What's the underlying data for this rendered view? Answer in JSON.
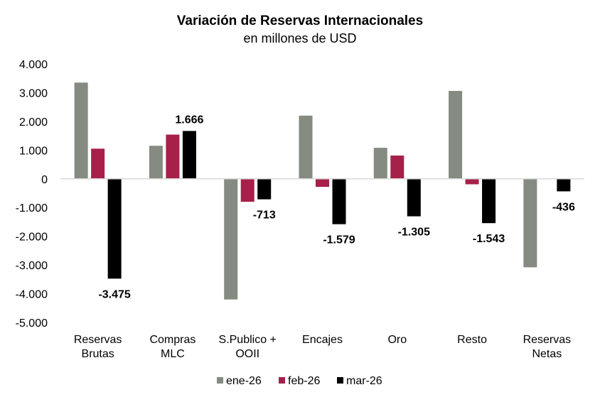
{
  "chart_data": {
    "type": "bar",
    "title": "Variación de Reservas Internacionales",
    "subtitle": "en millones de USD",
    "xlabel": "",
    "ylabel": "",
    "ylim": [
      -5000,
      4000
    ],
    "yticks": [
      4000,
      3000,
      2000,
      1000,
      0,
      -1000,
      -2000,
      -3000,
      -4000,
      -5000
    ],
    "ytick_labels": [
      "4.000",
      "3.000",
      "2.000",
      "1.000",
      "0",
      "-1.000",
      "-2.000",
      "-3.000",
      "-4.000",
      "-5.000"
    ],
    "grid": false,
    "legend_position": "bottom-center",
    "categories": [
      [
        "Reservas",
        "Brutas"
      ],
      [
        "Compras",
        "MLC"
      ],
      [
        "S.Publico +",
        "OOII"
      ],
      [
        "Encajes"
      ],
      [
        "Oro"
      ],
      [
        "Resto"
      ],
      [
        "Reservas",
        "Netas"
      ]
    ],
    "series": [
      {
        "name": "ene-26",
        "color": "#858B80",
        "values": [
          3350,
          1150,
          -4200,
          2200,
          1080,
          3060,
          -3080
        ]
      },
      {
        "name": "feb-26",
        "color": "#A6204A",
        "values": [
          1050,
          1540,
          -800,
          -280,
          810,
          -190,
          null
        ]
      },
      {
        "name": "mar-26",
        "color": "#000000",
        "values": [
          -3475,
          1666,
          -713,
          -1579,
          -1305,
          -1543,
          -436
        ],
        "data_labels": [
          "-3.475",
          "1.666",
          "-713",
          "-1.579",
          "-1.305",
          "-1.543",
          "-436"
        ]
      }
    ]
  }
}
